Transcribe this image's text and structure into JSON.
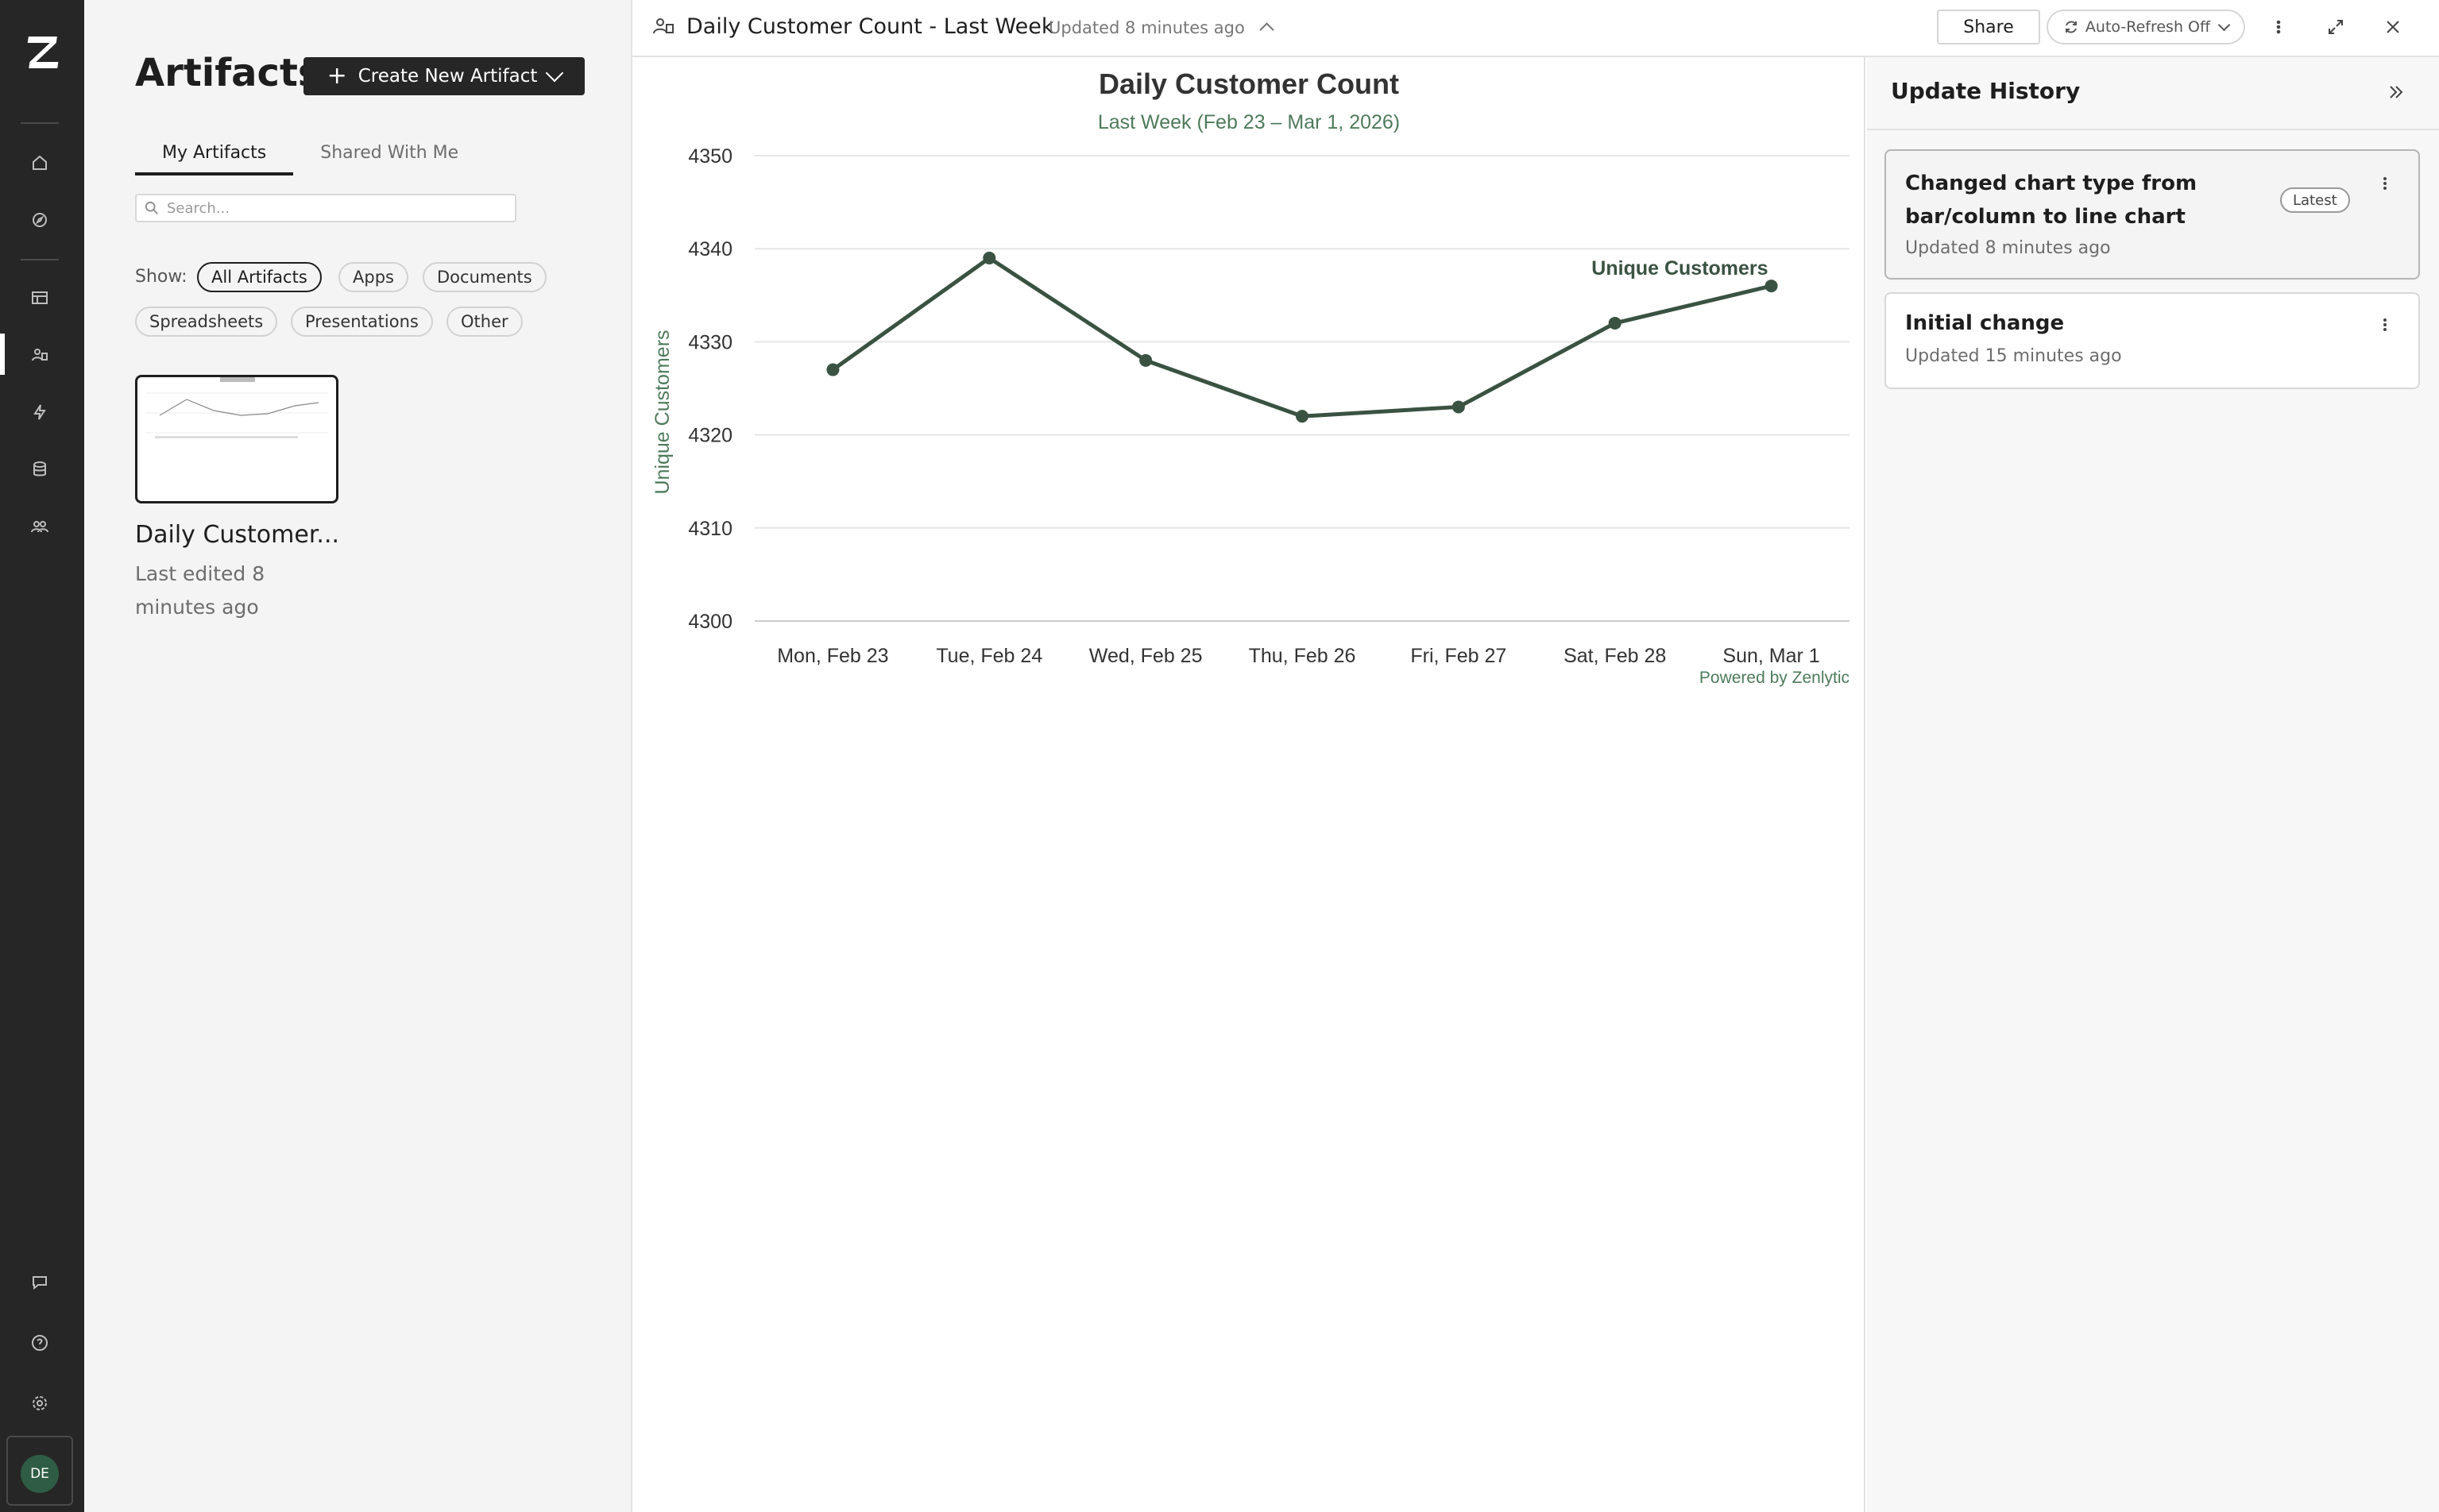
{
  "sidebar": {
    "avatar_initials": "DE",
    "icons": [
      "home-icon",
      "explore-icon",
      "table-icon",
      "artifacts-icon",
      "lightning-icon",
      "database-icon",
      "team-icon",
      "feedback-icon",
      "help-icon",
      "settings-icon"
    ]
  },
  "artifacts_panel": {
    "title": "Artifacts",
    "create_button_label": "Create New Artifact",
    "tabs": [
      {
        "label": "My Artifacts",
        "active": true
      },
      {
        "label": "Shared With Me",
        "active": false
      }
    ],
    "search_placeholder": "Search...",
    "show_label": "Show:",
    "filters": [
      {
        "label": "All Artifacts",
        "active": true
      },
      {
        "label": "Apps",
        "active": false
      },
      {
        "label": "Documents",
        "active": false
      },
      {
        "label": "Spreadsheets",
        "active": false
      },
      {
        "label": "Presentations",
        "active": false
      },
      {
        "label": "Other",
        "active": false
      }
    ],
    "card": {
      "title": "Daily Customer...",
      "subtitle": "Last edited 8 minutes ago"
    }
  },
  "header": {
    "title": "Daily Customer Count - Last Week",
    "updated": "Updated 8 minutes ago",
    "share_label": "Share",
    "refresh_label": "Auto-Refresh Off"
  },
  "chart_data": {
    "type": "line",
    "title": "Daily Customer Count",
    "subtitle": "Last Week (Feb 23 – Mar 1, 2026)",
    "xlabel": "",
    "ylabel": "Unique Customers",
    "categories": [
      "Mon, Feb 23",
      "Tue, Feb 24",
      "Wed, Feb 25",
      "Thu, Feb 26",
      "Fri, Feb 27",
      "Sat, Feb 28",
      "Sun, Mar 1"
    ],
    "series": [
      {
        "name": "Unique Customers",
        "values": [
          4327,
          4339,
          4328,
          4322,
          4323,
          4332,
          4336
        ]
      }
    ],
    "ylim": [
      4300,
      4350
    ],
    "yticks": [
      4300,
      4310,
      4320,
      4330,
      4340,
      4350
    ],
    "grid": true,
    "credit": "Powered by Zenlytic",
    "line_color": "#3a5242",
    "subtitle_color": "#4f7a5c"
  },
  "history": {
    "title": "Update History",
    "items": [
      {
        "title": "Changed chart type from bar/column to line chart",
        "time": "Updated 8 minutes ago",
        "badge": "Latest"
      },
      {
        "title": "Initial change",
        "time": "Updated 15 minutes ago"
      }
    ]
  }
}
